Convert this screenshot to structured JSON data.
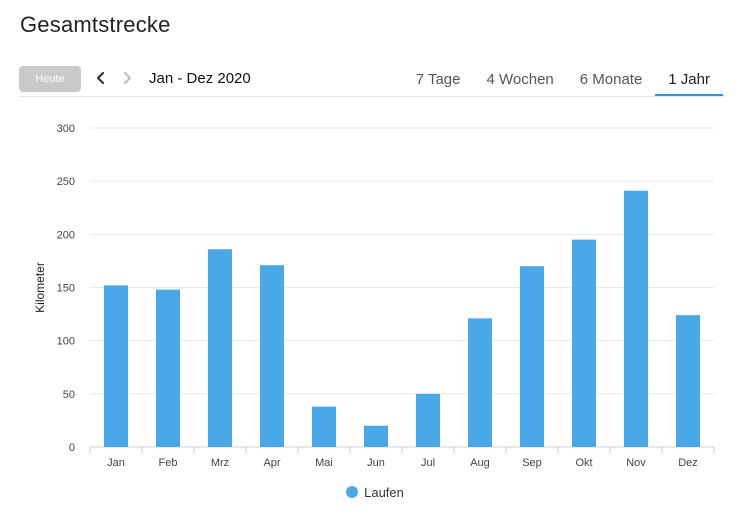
{
  "page": {
    "title": "Gesamtstrecke"
  },
  "toolbar": {
    "today_label": "Heute",
    "prev_icon": "chevron-left-icon",
    "next_icon": "chevron-right-icon",
    "range_label": "Jan - Dez 2020",
    "tabs": [
      {
        "label": "7 Tage",
        "active": false
      },
      {
        "label": "4 Wochen",
        "active": false
      },
      {
        "label": "6 Monate",
        "active": false
      },
      {
        "label": "1 Jahr",
        "active": true
      }
    ]
  },
  "colors": {
    "bar": "#4aa8e8",
    "grid": "#e8e8e8",
    "tab_active_underline": "#3a8fd6",
    "today_button": "#c9c9c9"
  },
  "chart_data": {
    "type": "bar",
    "title": "",
    "xlabel": "",
    "ylabel": "Kilometer",
    "ylim": [
      0,
      300
    ],
    "yticks": [
      0,
      50,
      100,
      150,
      200,
      250,
      300
    ],
    "grid": true,
    "legend_position": "bottom-center",
    "categories": [
      "Jan",
      "Feb",
      "Mrz",
      "Apr",
      "Mai",
      "Jun",
      "Jul",
      "Aug",
      "Sep",
      "Okt",
      "Nov",
      "Dez"
    ],
    "series": [
      {
        "name": "Laufen",
        "color": "#4aa8e8",
        "values": [
          152,
          148,
          186,
          171,
          38,
          20,
          50,
          121,
          170,
          195,
          241,
          124
        ]
      }
    ]
  }
}
